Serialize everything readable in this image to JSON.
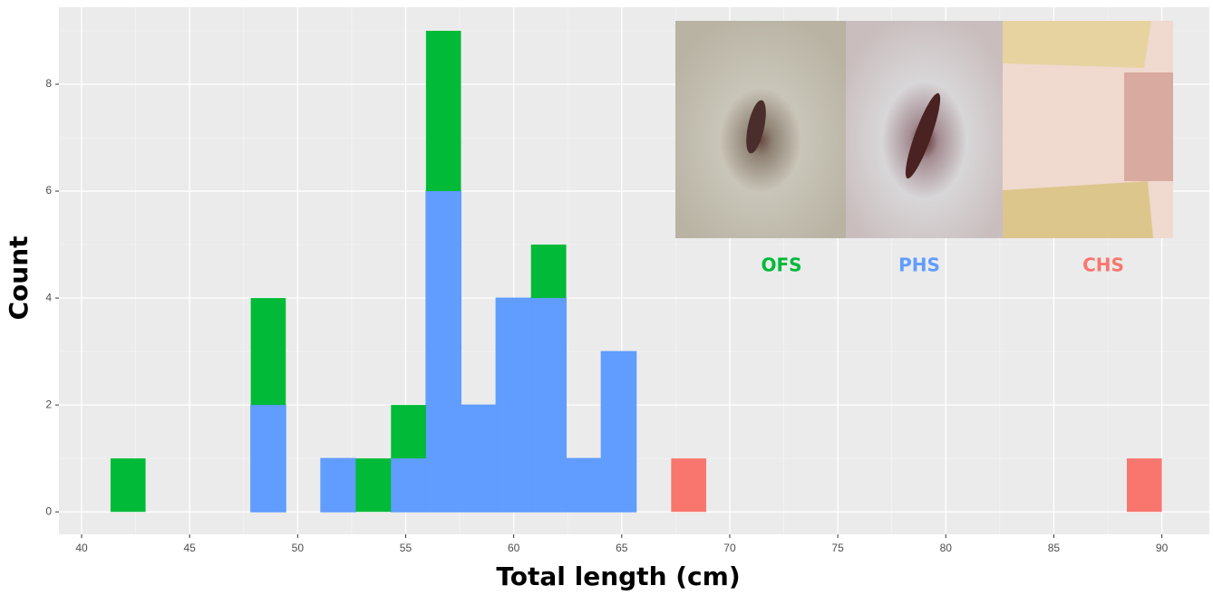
{
  "chart_data": {
    "type": "histogram",
    "x_label": "Total length (cm)",
    "y_label": "Count",
    "bins": [
      41.34,
      42.96,
      44.58,
      46.21,
      47.83,
      49.45,
      51.07,
      52.69,
      54.32,
      55.94,
      57.56,
      59.18,
      60.8,
      62.43,
      64.05,
      65.67,
      67.29,
      68.91,
      70.53,
      72.16,
      73.78,
      75.4,
      77.02,
      78.64,
      80.27,
      81.89,
      83.51,
      85.13,
      86.75,
      88.38,
      90.0
    ],
    "series": [
      {
        "name": "PHS",
        "color": "#619cff",
        "values": [
          0,
          0,
          0,
          0,
          2,
          0,
          1,
          0,
          1,
          6,
          2,
          4,
          4,
          1,
          3,
          0,
          0,
          0,
          0,
          0,
          0,
          0,
          0,
          0,
          0,
          0,
          0,
          0,
          0,
          0
        ]
      },
      {
        "name": "OFS",
        "color": "#00ba38",
        "values": [
          1,
          0,
          0,
          0,
          2,
          0,
          0,
          1,
          1,
          3,
          0,
          0,
          1,
          0,
          0,
          0,
          0,
          0,
          0,
          0,
          0,
          0,
          0,
          0,
          0,
          0,
          0,
          0,
          0,
          0
        ]
      },
      {
        "name": "CHS",
        "color": "#f8766d",
        "values": [
          0,
          0,
          0,
          0,
          0,
          0,
          0,
          0,
          0,
          0,
          0,
          0,
          0,
          0,
          0,
          0,
          1,
          0,
          0,
          0,
          0,
          0,
          0,
          0,
          0,
          0,
          0,
          0,
          0,
          1
        ]
      }
    ],
    "xlim": [
      38.95,
      92.2
    ],
    "ylim": [
      -0.42,
      9.44
    ],
    "xticks": [
      40,
      45,
      50,
      55,
      60,
      65,
      70,
      75,
      80,
      85,
      90
    ],
    "yticks": [
      0,
      2,
      4,
      6,
      8
    ],
    "grid": true
  }
}
